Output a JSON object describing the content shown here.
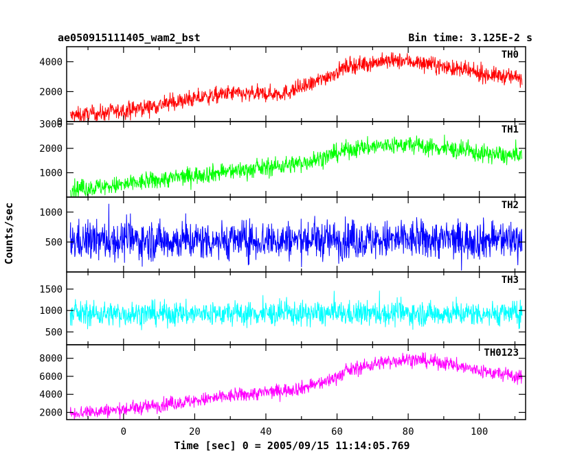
{
  "chart_data": {
    "type": "line",
    "title_left": "ae050915111405_wam2_bst",
    "title_right": "Bin time: 3.125E-2 s",
    "xlabel": "Time [sec] 0 = 2005/09/15 11:14:05.769",
    "ylabel": "Counts/sec",
    "xlim": [
      -16,
      113
    ],
    "xticks": [
      "0",
      "20",
      "40",
      "60",
      "80",
      "100"
    ],
    "grid": false,
    "panels": [
      {
        "name": "TH0",
        "color": "#ff0000",
        "ylim": [
          0,
          5000
        ],
        "yticks": [
          "0",
          "2000",
          "4000"
        ],
        "trend": {
          "x": [
            -16,
            0,
            10,
            20,
            30,
            35,
            45,
            52,
            58,
            63,
            72,
            80,
            88,
            100,
            112
          ],
          "y": [
            350,
            700,
            1100,
            1500,
            1900,
            1800,
            1900,
            2400,
            3100,
            3700,
            4000,
            4050,
            3750,
            3200,
            2900
          ]
        },
        "noise": 380
      },
      {
        "name": "TH1",
        "color": "#00ff00",
        "ylim": [
          0,
          3100
        ],
        "yticks": [
          "1000",
          "2000",
          "3000"
        ],
        "trend": {
          "x": [
            -16,
            0,
            10,
            20,
            30,
            40,
            50,
            57,
            63,
            72,
            80,
            90,
            100,
            112
          ],
          "y": [
            300,
            500,
            700,
            900,
            1050,
            1200,
            1400,
            1650,
            1950,
            2100,
            2150,
            2000,
            1800,
            1650
          ]
        },
        "noise": 260
      },
      {
        "name": "TH2",
        "color": "#0000ff",
        "ylim": [
          0,
          1250
        ],
        "yticks": [
          "500",
          "1000"
        ],
        "trend": {
          "x": [
            -16,
            112
          ],
          "y": [
            520,
            540
          ]
        },
        "noise": 230
      },
      {
        "name": "TH3",
        "color": "#00ffff",
        "ylim": [
          200,
          1900
        ],
        "yticks": [
          "500",
          "1000",
          "1500"
        ],
        "trend": {
          "x": [
            -16,
            112
          ],
          "y": [
            920,
            930
          ]
        },
        "noise": 200
      },
      {
        "name": "TH0123",
        "color": "#ff00ff",
        "ylim": [
          1200,
          9500
        ],
        "yticks": [
          "2000",
          "4000",
          "6000",
          "8000"
        ],
        "trend": {
          "x": [
            -16,
            0,
            10,
            20,
            30,
            40,
            50,
            57,
            63,
            72,
            80,
            90,
            100,
            112
          ],
          "y": [
            1900,
            2300,
            2800,
            3300,
            3800,
            4200,
            4700,
            5400,
            6600,
            7500,
            7900,
            7500,
            6600,
            5900
          ]
        },
        "noise": 550
      }
    ]
  }
}
